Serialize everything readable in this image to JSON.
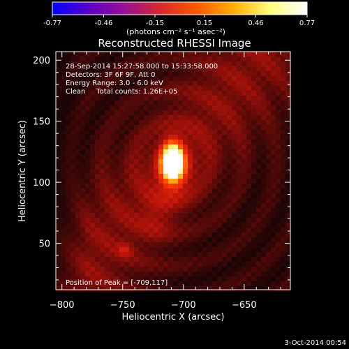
{
  "colorbar": {
    "ticks": [
      "-0.77",
      "-0.46",
      "-0.15",
      "0.15",
      "0.46",
      "0.77"
    ],
    "tick_values": [
      -0.77,
      -0.46,
      -0.15,
      0.15,
      0.46,
      0.77
    ],
    "range": [
      -0.77,
      0.77
    ],
    "units_label": "(photons cm⁻² s⁻¹ asec⁻²)",
    "colormap": [
      "#0000ff",
      "#5a00c8",
      "#9a1090",
      "#d82a2a",
      "#ff5a00",
      "#ffb000",
      "#ffff80",
      "#ffffff"
    ]
  },
  "chart_data": {
    "type": "heatmap",
    "title": "Reconstructed RHESSI Image",
    "xlabel": "Heliocentric X (arcsec)",
    "ylabel": "Heliocentric Y (arcsec)",
    "xlim": [
      -805,
      -612
    ],
    "ylim": [
      12,
      207
    ],
    "x_ticks": [
      -800,
      -750,
      -700,
      -650
    ],
    "y_ticks": [
      50,
      100,
      150,
      200
    ],
    "annotations": [
      "28-Sep-2014 15:27:58.000 to 15:33:58.000",
      "Detectors: 3F 6F 9F, Att 0",
      "Energy Range: 3.0 - 6.0 keV",
      "Clean     Total counts: 1.26E+05"
    ],
    "peak_label": "Position of Peak = [-709,117]",
    "peak": {
      "x": -709,
      "y": 117
    },
    "source_blobs": [
      {
        "x": -709,
        "y": 117,
        "amp": 1.0,
        "sx": 6,
        "sy": 11
      },
      {
        "x": -707,
        "y": 108,
        "amp": 0.25,
        "sx": 12,
        "sy": 16
      },
      {
        "x": -748,
        "y": 45,
        "amp": 0.18,
        "sx": 4,
        "sy": 4
      },
      {
        "x": -722,
        "y": 70,
        "amp": 0.12,
        "sx": 10,
        "sy": 12
      }
    ],
    "grid": false
  },
  "footer": {
    "timestamp": "3-Oct-2014 00:54"
  }
}
